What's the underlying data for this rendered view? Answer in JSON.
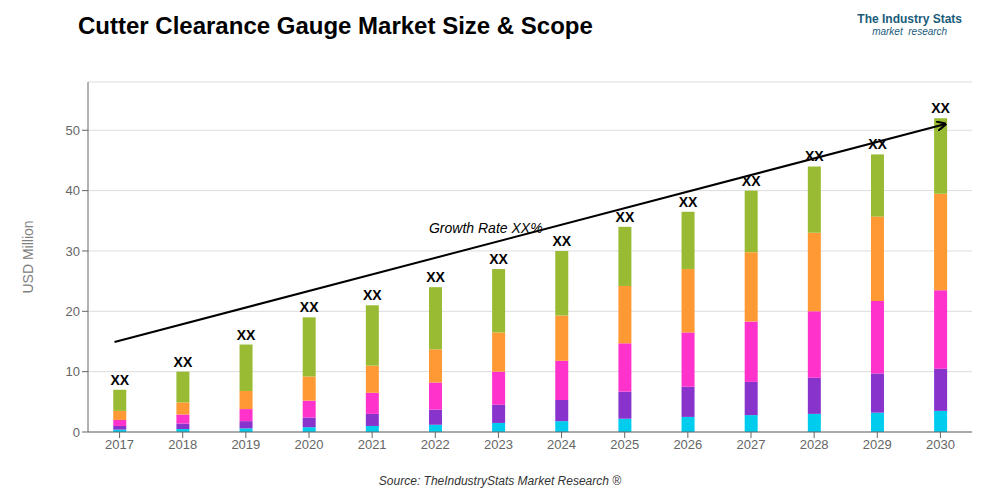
{
  "chart_data": {
    "type": "bar",
    "stacked": true,
    "title": "Cutter Clearance Gauge Market Size & Scope",
    "y_label": "USD Million",
    "categories": [
      "2017",
      "2018",
      "2019",
      "2020",
      "2021",
      "2022",
      "2023",
      "2024",
      "2025",
      "2026",
      "2027",
      "2028",
      "2029",
      "2030"
    ],
    "series": [
      {
        "color": "#00ccee",
        "values": [
          0.4,
          0.5,
          0.6,
          0.8,
          1.0,
          1.2,
          1.5,
          1.8,
          2.2,
          2.5,
          2.8,
          3.0,
          3.2,
          3.5
        ]
      },
      {
        "color": "#8833cc",
        "values": [
          0.6,
          0.9,
          1.2,
          1.6,
          2.0,
          2.5,
          3.0,
          3.5,
          4.5,
          5.0,
          5.5,
          6.0,
          6.5,
          7.0
        ]
      },
      {
        "color": "#ff33cc",
        "values": [
          1.0,
          1.5,
          2.0,
          2.8,
          3.5,
          4.5,
          5.5,
          6.5,
          8.0,
          9.0,
          10.0,
          11.0,
          12.0,
          13.0
        ]
      },
      {
        "color": "#ff9933",
        "values": [
          1.5,
          2.0,
          3.0,
          4.0,
          4.5,
          5.5,
          6.5,
          7.5,
          9.5,
          10.5,
          11.5,
          13.0,
          14.0,
          16.0
        ]
      },
      {
        "color": "#99bb33",
        "values": [
          3.5,
          5.1,
          7.7,
          9.8,
          10.0,
          10.3,
          10.5,
          10.7,
          9.8,
          9.5,
          10.2,
          11.0,
          10.3,
          12.5
        ]
      }
    ],
    "ylim": [
      0,
      58
    ],
    "yticks": [
      0,
      10,
      20,
      30,
      40,
      50
    ],
    "grid": true,
    "annotations": [
      {
        "text": "XX"
      },
      {
        "text": "Growth Rate XX%"
      },
      {
        "text": "Source: TheIndustryStats Market Research ®"
      },
      {
        "text": "The Industry Stats"
      },
      {
        "text": "market  research"
      }
    ]
  }
}
